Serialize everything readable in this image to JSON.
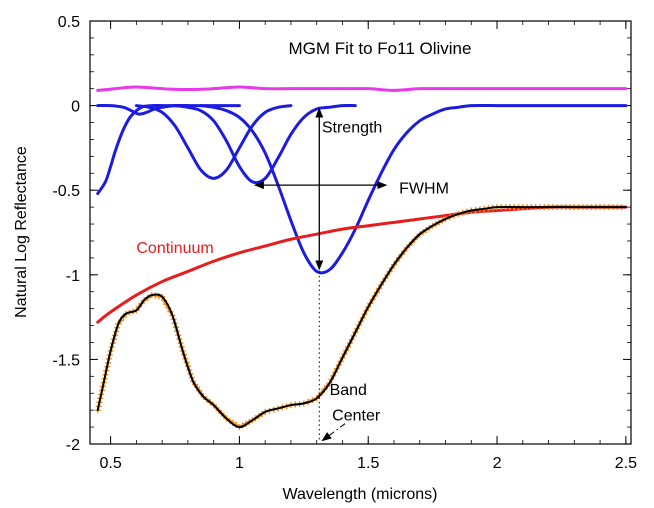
{
  "chart_data": {
    "type": "line",
    "title": "MGM Fit to Fo11 Olivine",
    "xlabel": "Wavelength (microns)",
    "ylabel": "Natural Log Reflectance",
    "xlim": [
      0.42,
      2.52
    ],
    "ylim": [
      -2.0,
      0.5
    ],
    "xticks": [
      0.5,
      1.0,
      1.5,
      2.0,
      2.5
    ],
    "xtick_labels": [
      "0.5",
      "1",
      "1.5",
      "2",
      "2.5"
    ],
    "yticks": [
      0.5,
      0.0,
      -0.5,
      -1.0,
      -1.5,
      -2.0
    ],
    "ytick_labels": [
      "0.5",
      "0",
      "-0.5",
      "-1",
      "-1.5",
      "-2"
    ],
    "colors": {
      "residual": "#e838e8",
      "gaussian": "#1c1ce0",
      "continuum": "#e81c1c",
      "fit": "#000000",
      "data_markers": "#f28c1a",
      "annotation": "#000000"
    },
    "series": [
      {
        "name": "residual",
        "x": [
          0.45,
          0.52,
          0.6,
          0.7,
          0.8,
          0.9,
          1.0,
          1.1,
          1.2,
          1.3,
          1.4,
          1.5,
          1.6,
          1.7,
          1.8,
          1.9,
          2.0,
          2.1,
          2.2,
          2.3,
          2.4,
          2.5
        ],
        "y": [
          0.09,
          0.1,
          0.11,
          0.1,
          0.095,
          0.1,
          0.11,
          0.1,
          0.1,
          0.1,
          0.1,
          0.1,
          0.09,
          0.1,
          0.1,
          0.1,
          0.1,
          0.1,
          0.1,
          0.1,
          0.1,
          0.1
        ]
      },
      {
        "name": "gaussian-band-1",
        "x": [
          0.45,
          0.48,
          0.5,
          0.52,
          0.55,
          0.58,
          0.62,
          0.66,
          0.7,
          0.75,
          0.8,
          0.85,
          0.9,
          0.95,
          1.0
        ],
        "y": [
          -0.52,
          -0.45,
          -0.36,
          -0.26,
          -0.14,
          -0.06,
          -0.01,
          0.0,
          0.0,
          0.0,
          0.0,
          0.0,
          0.0,
          0.0,
          0.0
        ]
      },
      {
        "name": "gaussian-band-2",
        "x": [
          0.45,
          0.5,
          0.55,
          0.58,
          0.61,
          0.64,
          0.67,
          0.7,
          0.75,
          0.8
        ],
        "y": [
          0.0,
          0.0,
          -0.01,
          -0.03,
          -0.05,
          -0.04,
          -0.02,
          -0.01,
          0.0,
          0.0
        ]
      },
      {
        "name": "gaussian-band-3",
        "x": [
          0.6,
          0.65,
          0.7,
          0.75,
          0.8,
          0.85,
          0.9,
          0.95,
          1.0,
          1.05,
          1.1,
          1.15,
          1.2
        ],
        "y": [
          0.0,
          -0.01,
          -0.04,
          -0.12,
          -0.25,
          -0.38,
          -0.43,
          -0.38,
          -0.25,
          -0.12,
          -0.04,
          -0.01,
          0.0
        ]
      },
      {
        "name": "gaussian-band-4",
        "x": [
          0.75,
          0.8,
          0.85,
          0.9,
          0.95,
          1.0,
          1.05,
          1.1,
          1.15,
          1.2,
          1.25,
          1.3,
          1.35,
          1.4,
          1.45
        ],
        "y": [
          0.0,
          -0.01,
          -0.03,
          -0.09,
          -0.21,
          -0.36,
          -0.45,
          -0.43,
          -0.31,
          -0.17,
          -0.07,
          -0.02,
          -0.01,
          0.0,
          0.0
        ]
      },
      {
        "name": "gaussian-band-5",
        "x": [
          0.85,
          0.9,
          0.95,
          1.0,
          1.05,
          1.1,
          1.15,
          1.2,
          1.25,
          1.3,
          1.35,
          1.4,
          1.45,
          1.5,
          1.55,
          1.6,
          1.65,
          1.7,
          1.75,
          1.8,
          1.85,
          1.9,
          2.0,
          2.1,
          2.2,
          2.3,
          2.4,
          2.5
        ],
        "y": [
          0.0,
          -0.01,
          -0.03,
          -0.07,
          -0.15,
          -0.28,
          -0.47,
          -0.68,
          -0.87,
          -0.98,
          -0.97,
          -0.87,
          -0.73,
          -0.56,
          -0.4,
          -0.26,
          -0.16,
          -0.09,
          -0.05,
          -0.02,
          -0.01,
          0.0,
          0.0,
          0.0,
          0.0,
          0.0,
          0.0,
          0.0
        ]
      },
      {
        "name": "continuum",
        "x": [
          0.45,
          0.5,
          0.6,
          0.7,
          0.8,
          0.9,
          1.0,
          1.1,
          1.2,
          1.3,
          1.4,
          1.5,
          1.6,
          1.7,
          1.8,
          1.9,
          2.0,
          2.1,
          2.2,
          2.3,
          2.4,
          2.5
        ],
        "y": [
          -1.28,
          -1.22,
          -1.12,
          -1.04,
          -0.98,
          -0.92,
          -0.87,
          -0.83,
          -0.79,
          -0.76,
          -0.73,
          -0.71,
          -0.69,
          -0.67,
          -0.65,
          -0.63,
          -0.62,
          -0.61,
          -0.6,
          -0.6,
          -0.6,
          -0.6
        ]
      },
      {
        "name": "modeled-spectrum",
        "x": [
          0.45,
          0.47,
          0.5,
          0.53,
          0.56,
          0.6,
          0.63,
          0.66,
          0.7,
          0.74,
          0.78,
          0.82,
          0.86,
          0.9,
          0.95,
          1.0,
          1.05,
          1.1,
          1.15,
          1.2,
          1.25,
          1.3,
          1.35,
          1.4,
          1.45,
          1.5,
          1.55,
          1.6,
          1.65,
          1.7,
          1.75,
          1.8,
          1.85,
          1.9,
          1.95,
          2.0,
          2.1,
          2.2,
          2.3,
          2.4,
          2.5
        ],
        "y": [
          -1.8,
          -1.66,
          -1.45,
          -1.29,
          -1.23,
          -1.21,
          -1.15,
          -1.12,
          -1.13,
          -1.24,
          -1.45,
          -1.63,
          -1.72,
          -1.77,
          -1.85,
          -1.9,
          -1.86,
          -1.81,
          -1.79,
          -1.77,
          -1.76,
          -1.73,
          -1.64,
          -1.49,
          -1.34,
          -1.19,
          -1.06,
          -0.94,
          -0.84,
          -0.76,
          -0.71,
          -0.67,
          -0.64,
          -0.62,
          -0.61,
          -0.6,
          -0.6,
          -0.6,
          -0.6,
          -0.6,
          -0.6
        ]
      }
    ],
    "annotations": [
      {
        "text": "Continuum",
        "x": 0.6,
        "y": -0.87,
        "color": "#e81c1c"
      },
      {
        "text": "Strength",
        "x": 1.32,
        "y": -0.16,
        "color": "#000000"
      },
      {
        "text": "FWHM",
        "x": 1.62,
        "y": -0.52,
        "color": "#000000"
      },
      {
        "text": "Band",
        "x": 1.35,
        "y": -1.71,
        "color": "#000000"
      },
      {
        "text": "Center",
        "x": 1.36,
        "y": -1.86,
        "color": "#000000"
      }
    ]
  }
}
